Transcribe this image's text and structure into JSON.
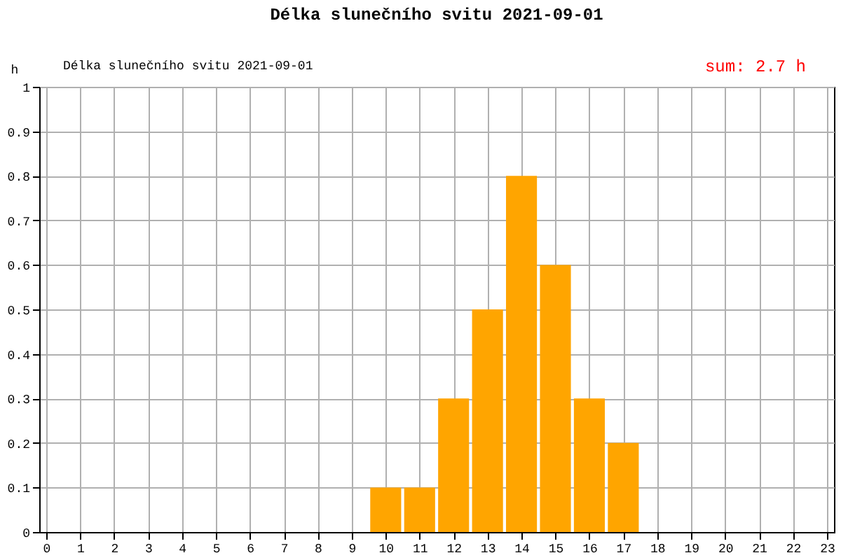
{
  "chart_data": {
    "type": "bar",
    "title": "Délka slunečního svitu 2021-09-01",
    "ylabel": "h",
    "annotations": [
      "sum: 2.7 h"
    ],
    "x": [
      10,
      11,
      12,
      13,
      14,
      15,
      16,
      17
    ],
    "series": [
      {
        "name": "Délka slunečního svitu 2021-09-01",
        "color": "#ffa500",
        "values": [
          0.1,
          0.1,
          0.3,
          0.5,
          0.8,
          0.6,
          0.3,
          0.2
        ]
      }
    ],
    "xlim": [
      0,
      23
    ],
    "xticks": [
      0,
      1,
      2,
      3,
      4,
      5,
      6,
      7,
      8,
      9,
      10,
      11,
      12,
      13,
      14,
      15,
      16,
      17,
      18,
      19,
      20,
      21,
      22,
      23
    ],
    "ylim": [
      0,
      1
    ],
    "yticks": [
      0,
      0.1,
      0.2,
      0.3,
      0.4,
      0.5,
      0.6,
      0.7,
      0.8,
      0.9,
      1
    ],
    "grid": true,
    "legend": "top left"
  }
}
